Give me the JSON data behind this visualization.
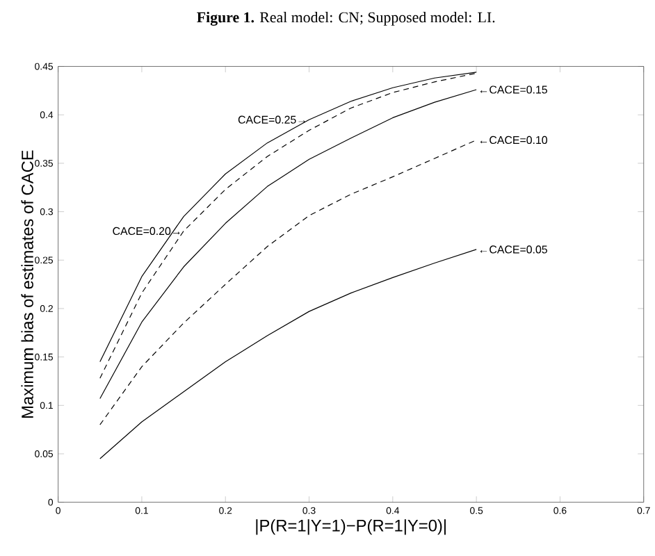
{
  "chart_data": {
    "type": "line",
    "title": "**Figure 1.** Real model: CN; Supposed model: LI.",
    "xlabel": "|P(R=1|Y=1)−P(R=1|Y=0)|",
    "ylabel": "Maximum bias of estimates of CACE",
    "x": [
      0.05,
      0.1,
      0.15,
      0.2,
      0.25,
      0.3,
      0.35,
      0.4,
      0.45,
      0.5
    ],
    "series": [
      {
        "color": "#000000",
        "line_style": "solid",
        "values": [
          0.045,
          0.083,
          0.114,
          0.145,
          0.172,
          0.197,
          0.216,
          0.232,
          0.247,
          0.261
        ]
      },
      {
        "color": "#000000",
        "line_style": "dashed",
        "values": [
          0.08,
          0.14,
          0.185,
          0.225,
          0.264,
          0.296,
          0.318,
          0.336,
          0.355,
          0.374
        ]
      },
      {
        "color": "#000000",
        "line_style": "solid",
        "values": [
          0.107,
          0.186,
          0.243,
          0.288,
          0.326,
          0.354,
          0.376,
          0.397,
          0.413,
          0.426
        ]
      },
      {
        "color": "#000000",
        "line_style": "dashed",
        "values": [
          0.128,
          0.216,
          0.28,
          0.323,
          0.357,
          0.384,
          0.407,
          0.423,
          0.434,
          0.443
        ]
      },
      {
        "color": "#000000",
        "line_style": "solid",
        "values": [
          0.145,
          0.233,
          0.295,
          0.339,
          0.371,
          0.395,
          0.414,
          0.428,
          0.438,
          0.444
        ]
      }
    ],
    "annotations": [
      {
        "text": "CACE=0.25→",
        "x": 0.3,
        "y": 0.395
      },
      {
        "text": "CACE=0.20→",
        "x": 0.15,
        "y": 0.28
      },
      {
        "text": "←CACE=0.15",
        "x": 0.5,
        "y": 0.426
      },
      {
        "text": "←CACE=0.10",
        "x": 0.5,
        "y": 0.374
      },
      {
        "text": "←CACE=0.05",
        "x": 0.5,
        "y": 0.261
      }
    ],
    "xlim": [
      0,
      0.7
    ],
    "xticks": [
      0,
      0.1,
      0.2,
      0.3,
      0.4,
      0.5,
      0.6,
      0.7
    ],
    "ylim": [
      0,
      0.45
    ],
    "yticks": [
      0,
      0.05,
      0.1,
      0.15,
      0.2,
      0.25,
      0.3,
      0.35,
      0.4,
      0.45
    ],
    "grid": false,
    "marker": "none"
  }
}
